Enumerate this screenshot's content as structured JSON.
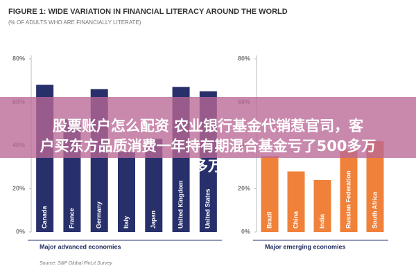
{
  "header": {
    "title": "FIGURE 1: WIDE VARIATION IN FINANCIAL LITERACY AROUND THE WORLD",
    "subtitle": "(% OF ADULTS WHO ARE FINANCIALLY LITERATE)"
  },
  "source": "Source: S&P Global FinLit Survey",
  "overlay": {
    "lines": [
      "股票账户怎么配资 农业银行基金代销惹官司，客",
      "户买东方品质消费一年持有期混合基金亏了500多万",
      "多万"
    ]
  },
  "chart_data": [
    {
      "type": "bar",
      "x_label": "Major advanced economies",
      "categories": [
        "Canada",
        "France",
        "Germany",
        "Italy",
        "Japan",
        "United Kingdom",
        "United States"
      ],
      "values": [
        68,
        52,
        66,
        37,
        43,
        67,
        65
      ],
      "color": "#27306b",
      "ylim": [
        0,
        80
      ],
      "yticks": [
        {
          "value": 0,
          "label": "0%"
        },
        {
          "value": 20,
          "label": "20%"
        },
        {
          "value": 40,
          "label": "40%"
        },
        {
          "value": 60,
          "label": "60%"
        },
        {
          "value": 80,
          "label": "80%"
        }
      ]
    },
    {
      "type": "bar",
      "x_label": "Major emerging economies",
      "categories": [
        "Brazil",
        "China",
        "India",
        "Russian Federation",
        "South Africa"
      ],
      "values": [
        35,
        28,
        24,
        38,
        42
      ],
      "color": "#f0813a",
      "ylim": [
        0,
        80
      ],
      "yticks": [
        {
          "value": 0,
          "label": "0%"
        },
        {
          "value": 20,
          "label": "20%"
        },
        {
          "value": 40,
          "label": "40%"
        },
        {
          "value": 60,
          "label": "60%"
        },
        {
          "value": 80,
          "label": "80%"
        }
      ]
    }
  ]
}
